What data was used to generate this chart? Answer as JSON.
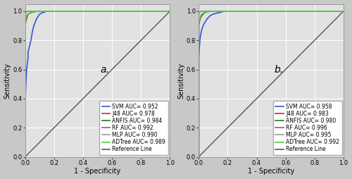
{
  "panel_a": {
    "label": "a.",
    "legend": [
      {
        "name": "SVM AUC= 0.952",
        "color": "#3355cc"
      },
      {
        "name": "J48 AUC= 0.978",
        "color": "#dd2222"
      },
      {
        "name": "ANFIS AUC= 0.984",
        "color": "#227722"
      },
      {
        "name": "RF AUC= 0.992",
        "color": "#aa44bb"
      },
      {
        "name": "MLP AUC= 0.990",
        "color": "#999999"
      },
      {
        "name": "ADTree AUC= 0.989",
        "color": "#55cc44"
      },
      {
        "name": "Reference Line",
        "color": "#555555"
      }
    ],
    "curves": {
      "SVM": {
        "fpr": [
          0,
          0,
          0,
          0.005,
          0.01,
          0.02,
          0.02,
          0.03,
          0.04,
          0.05,
          0.06,
          0.08,
          0.1,
          0.12,
          0.15,
          0.18,
          0.2,
          1.0
        ],
        "tpr": [
          0,
          0.22,
          0.36,
          0.5,
          0.6,
          0.68,
          0.72,
          0.76,
          0.8,
          0.86,
          0.9,
          0.95,
          0.98,
          0.99,
          1.0,
          1.0,
          1.0,
          1.0
        ]
      },
      "J48": {
        "fpr": [
          0,
          0,
          0,
          0.005,
          0.01,
          0.015,
          0.02,
          0.04,
          0.06,
          0.1,
          0.15,
          1.0
        ],
        "tpr": [
          0,
          0.84,
          0.9,
          0.93,
          0.95,
          0.97,
          0.98,
          0.99,
          1.0,
          1.0,
          1.0,
          1.0
        ]
      },
      "ANFIS": {
        "fpr": [
          0,
          0,
          0,
          0.005,
          0.01,
          0.02,
          0.04,
          0.08,
          0.12,
          0.18,
          1.0
        ],
        "tpr": [
          0,
          0.87,
          0.91,
          0.94,
          0.96,
          0.98,
          0.99,
          1.0,
          1.0,
          1.0,
          1.0
        ]
      },
      "RF": {
        "fpr": [
          0,
          0,
          0,
          0.005,
          0.01,
          0.02,
          0.03,
          1.0
        ],
        "tpr": [
          0,
          0.96,
          0.98,
          0.99,
          1.0,
          1.0,
          1.0,
          1.0
        ]
      },
      "MLP": {
        "fpr": [
          0,
          0,
          0,
          0.005,
          0.01,
          0.02,
          0.03,
          1.0
        ],
        "tpr": [
          0,
          0.95,
          0.97,
          0.99,
          1.0,
          1.0,
          1.0,
          1.0
        ]
      },
      "ADTree": {
        "fpr": [
          0,
          0,
          0,
          0.005,
          0.01,
          0.02,
          0.04,
          0.08,
          0.15,
          1.0
        ],
        "tpr": [
          0,
          0.88,
          0.92,
          0.95,
          0.97,
          0.98,
          0.99,
          1.0,
          1.0,
          1.0
        ]
      }
    },
    "colors": {
      "SVM": "#3355cc",
      "J48": "#dd2222",
      "ANFIS": "#227722",
      "RF": "#aa44bb",
      "MLP": "#999999",
      "ADTree": "#55cc44"
    }
  },
  "panel_b": {
    "label": "b.",
    "legend": [
      {
        "name": "SVM AUC= 0.958",
        "color": "#3355cc"
      },
      {
        "name": "J48 AUC= 0.983",
        "color": "#dd2222"
      },
      {
        "name": "ANFIS AUC= 0.980",
        "color": "#227722"
      },
      {
        "name": "RF AUC= 0.996",
        "color": "#aa44bb"
      },
      {
        "name": "MLP AUC= 0.995",
        "color": "#999999"
      },
      {
        "name": "ADTree AUC= 0.992",
        "color": "#55cc44"
      },
      {
        "name": "Reference Line",
        "color": "#555555"
      }
    ],
    "curves": {
      "SVM": {
        "fpr": [
          0,
          0,
          0,
          0.005,
          0.01,
          0.02,
          0.03,
          0.04,
          0.06,
          0.08,
          0.1,
          0.14,
          0.18,
          0.22,
          1.0
        ],
        "tpr": [
          0,
          0.52,
          0.68,
          0.76,
          0.82,
          0.87,
          0.9,
          0.92,
          0.95,
          0.97,
          0.98,
          0.99,
          1.0,
          1.0,
          1.0
        ]
      },
      "J48": {
        "fpr": [
          0,
          0,
          0,
          0.005,
          0.01,
          0.02,
          0.04,
          0.07,
          0.12,
          1.0
        ],
        "tpr": [
          0,
          0.83,
          0.9,
          0.93,
          0.95,
          0.97,
          0.99,
          1.0,
          1.0,
          1.0
        ]
      },
      "ANFIS": {
        "fpr": [
          0,
          0,
          0,
          0.005,
          0.01,
          0.02,
          0.04,
          0.08,
          0.14,
          1.0
        ],
        "tpr": [
          0,
          0.85,
          0.91,
          0.93,
          0.95,
          0.97,
          0.99,
          1.0,
          1.0,
          1.0
        ]
      },
      "RF": {
        "fpr": [
          0,
          0,
          0,
          0.005,
          0.01,
          0.02,
          0.03,
          1.0
        ],
        "tpr": [
          0,
          0.96,
          0.98,
          0.99,
          1.0,
          1.0,
          1.0,
          1.0
        ]
      },
      "MLP": {
        "fpr": [
          0,
          0,
          0,
          0.005,
          0.01,
          0.02,
          0.03,
          1.0
        ],
        "tpr": [
          0,
          0.95,
          0.97,
          0.99,
          1.0,
          1.0,
          1.0,
          1.0
        ]
      },
      "ADTree": {
        "fpr": [
          0,
          0,
          0,
          0.005,
          0.01,
          0.02,
          0.04,
          0.08,
          0.15,
          1.0
        ],
        "tpr": [
          0,
          0.86,
          0.92,
          0.94,
          0.96,
          0.98,
          0.99,
          1.0,
          1.0,
          1.0
        ]
      }
    },
    "colors": {
      "SVM": "#3355cc",
      "J48": "#dd2222",
      "ANFIS": "#227722",
      "RF": "#aa44bb",
      "MLP": "#999999",
      "ADTree": "#55cc44"
    }
  },
  "bg_color": "#c8c8c8",
  "axes_bg": "#e2e2e2",
  "ref_color": "#555555",
  "xlabel": "1 - Specificity",
  "ylabel": "Sensitivity",
  "xlim": [
    0.0,
    1.0
  ],
  "ylim": [
    0.0,
    1.05
  ],
  "xticks": [
    0.0,
    0.2,
    0.4,
    0.6,
    0.8,
    1.0
  ],
  "yticks": [
    0.0,
    0.2,
    0.4,
    0.6,
    0.8,
    1.0
  ],
  "tick_fontsize": 6,
  "label_fontsize": 7,
  "legend_fontsize": 5.5,
  "panel_label_fontsize": 10
}
